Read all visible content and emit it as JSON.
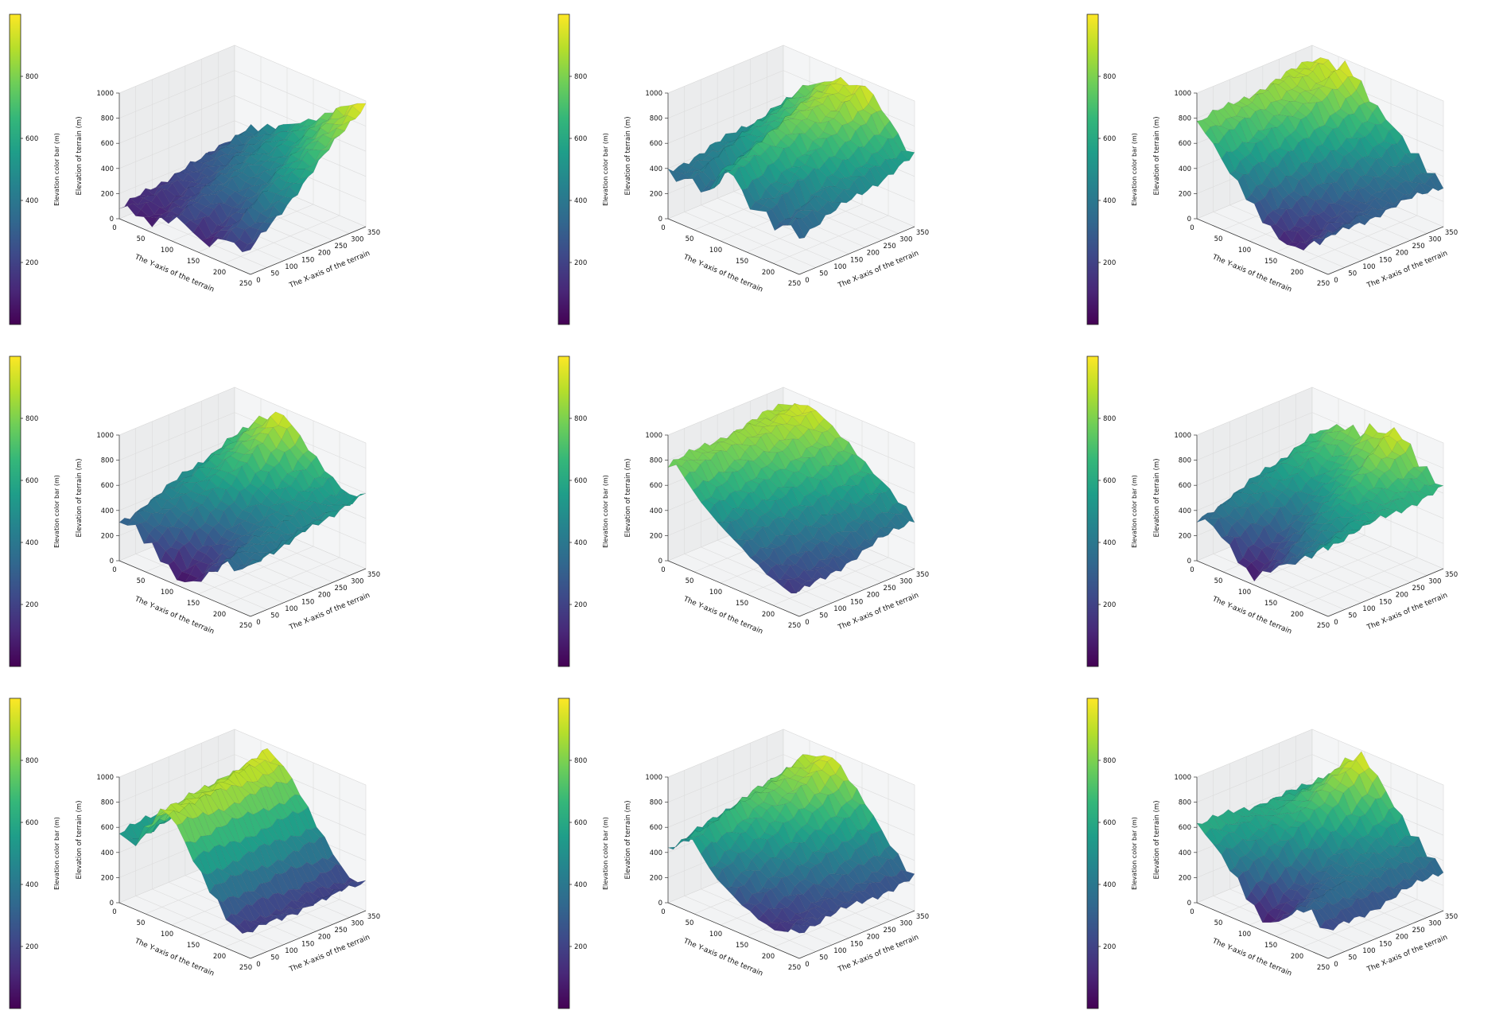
{
  "colormap": {
    "name": "viridis",
    "stops": [
      "#440154",
      "#482878",
      "#3e4989",
      "#31688e",
      "#26828e",
      "#1f9e89",
      "#35b779",
      "#6ece58",
      "#b5de2b",
      "#fde725"
    ]
  },
  "chart_data": [
    {
      "type": "surface3d",
      "panel_index": 0,
      "colorbar_label": "Elevation color bar (m)",
      "colorbar_ticks": [
        "200",
        "400",
        "600",
        "800"
      ],
      "colorbar_range": [
        0,
        1000
      ],
      "zlabel": "Elevation of terrain (m)",
      "zticks": [
        "0",
        "200",
        "400",
        "600",
        "800",
        "1000"
      ],
      "zlim": [
        0,
        1000
      ],
      "ylabel": "The Y-axis of the terrain",
      "yticks": [
        "0",
        "50",
        "100",
        "150",
        "200",
        "250"
      ],
      "ylim": [
        0,
        250
      ],
      "xlabel": "The X-axis of the terrain",
      "xticks": [
        "0",
        "50",
        "100",
        "150",
        "200",
        "250",
        "300",
        "350"
      ],
      "xlim": [
        0,
        350
      ],
      "surface_trend": "low at Y=0 rising to ~980 at far corner",
      "front_profile": [
        80,
        130,
        60,
        90,
        150,
        200,
        160,
        80,
        120,
        220,
        150,
        190
      ],
      "back_profile": [
        250,
        380,
        420,
        470,
        520,
        580,
        640,
        700,
        790,
        870,
        940,
        980
      ]
    },
    {
      "type": "surface3d",
      "panel_index": 1,
      "colorbar_label": "Elevation color bar (m)",
      "colorbar_ticks": [
        "200",
        "400",
        "600",
        "800"
      ],
      "colorbar_range": [
        0,
        1000
      ],
      "zlabel": "Elevation of terrain (m)",
      "zticks": [
        "0",
        "200",
        "400",
        "600",
        "800",
        "1000"
      ],
      "zlim": [
        0,
        1000
      ],
      "ylabel": "The Y-axis of the terrain",
      "yticks": [
        "0",
        "50",
        "100",
        "150",
        "200",
        "250"
      ],
      "ylim": [
        0,
        250
      ],
      "xlabel": "The X-axis of the terrain",
      "xticks": [
        "0",
        "50",
        "100",
        "150",
        "200",
        "250",
        "300",
        "350"
      ],
      "xlim": [
        0,
        350
      ],
      "surface_trend": "central ridge peaking near 950",
      "front_profile": [
        380,
        320,
        420,
        280,
        480,
        600,
        520,
        320,
        420,
        260,
        380,
        300
      ],
      "back_profile": [
        520,
        650,
        760,
        820,
        880,
        940,
        900,
        980,
        840,
        760,
        620,
        560
      ]
    },
    {
      "type": "surface3d",
      "panel_index": 2,
      "colorbar_label": "Elevation color bar (m)",
      "colorbar_ticks": [
        "200",
        "400",
        "600",
        "800"
      ],
      "colorbar_range": [
        0,
        1000
      ],
      "zlabel": "Elevation of terrain (m)",
      "zticks": [
        "0",
        "200",
        "400",
        "600",
        "800",
        "1000"
      ],
      "zlim": [
        0,
        1000
      ],
      "ylabel": "The Y-axis of the terrain",
      "yticks": [
        "0",
        "50",
        "100",
        "150",
        "200",
        "250"
      ],
      "ylim": [
        0,
        250
      ],
      "xlabel": "The X-axis of the terrain",
      "xticks": [
        "0",
        "50",
        "100",
        "150",
        "200",
        "250",
        "300",
        "350"
      ],
      "xlim": [
        0,
        350
      ],
      "surface_trend": "high at Y=0 (~900) falling to ~100",
      "front_profile": [
        760,
        700,
        560,
        460,
        360,
        260,
        180,
        120,
        80,
        140,
        220,
        300
      ],
      "back_profile": [
        880,
        950,
        900,
        980,
        860,
        760,
        680,
        620,
        520,
        460,
        380,
        330
      ]
    },
    {
      "type": "surface3d",
      "panel_index": 3,
      "colorbar_label": "Elevation color bar (m)",
      "colorbar_ticks": [
        "200",
        "400",
        "600",
        "800"
      ],
      "colorbar_range": [
        0,
        1000
      ],
      "zlabel": "Elevation of terrain (m)",
      "zticks": [
        "0",
        "200",
        "400",
        "600",
        "800",
        "1000"
      ],
      "zlim": [
        0,
        1000
      ],
      "ylabel": "The Y-axis of the terrain",
      "yticks": [
        "0",
        "50",
        "100",
        "150",
        "200",
        "250"
      ],
      "ylim": [
        0,
        250
      ],
      "xlabel": "The X-axis of the terrain",
      "xticks": [
        "0",
        "50",
        "100",
        "150",
        "200",
        "250",
        "300",
        "350"
      ],
      "xlim": [
        0,
        350
      ],
      "surface_trend": "peak ~960 with deep valley at front corner",
      "front_profile": [
        300,
        340,
        260,
        200,
        120,
        40,
        60,
        140,
        240,
        360,
        300,
        420
      ],
      "back_profile": [
        600,
        720,
        820,
        900,
        960,
        880,
        780,
        700,
        620,
        560,
        520,
        600
      ]
    },
    {
      "type": "surface3d",
      "panel_index": 4,
      "colorbar_label": "Elevation color bar (m)",
      "colorbar_ticks": [
        "200",
        "400",
        "600",
        "800"
      ],
      "colorbar_range": [
        0,
        1000
      ],
      "zlabel": "Elevation of terrain (m)",
      "zticks": [
        "0",
        "200",
        "400",
        "600",
        "800",
        "1000"
      ],
      "zlim": [
        0,
        1000
      ],
      "ylabel": "The Y-axis of the terrain",
      "yticks": [
        "0",
        "50",
        "100",
        "150",
        "200",
        "250"
      ],
      "ylim": [
        0,
        250
      ],
      "xlabel": "The X-axis of the terrain",
      "xticks": [
        "0",
        "50",
        "100",
        "150",
        "200",
        "250",
        "300",
        "350"
      ],
      "xlim": [
        0,
        350
      ],
      "surface_trend": "ridge ~950 near Y=0 descending to ~200",
      "front_profile": [
        760,
        780,
        640,
        560,
        480,
        420,
        360,
        300,
        240,
        200,
        160,
        180
      ],
      "back_profile": [
        860,
        900,
        940,
        920,
        860,
        800,
        740,
        660,
        600,
        540,
        460,
        400
      ]
    },
    {
      "type": "surface3d",
      "panel_index": 5,
      "colorbar_label": "Elevation color bar (m)",
      "colorbar_ticks": [
        "200",
        "400",
        "600",
        "800"
      ],
      "colorbar_range": [
        0,
        1000
      ],
      "zlabel": "Elevation of terrain (m)",
      "zticks": [
        "0",
        "200",
        "400",
        "600",
        "800",
        "1000"
      ],
      "zlim": [
        0,
        1000
      ],
      "ylabel": "The Y-axis of the terrain",
      "yticks": [
        "0",
        "50",
        "100",
        "150",
        "200",
        "250"
      ],
      "ylim": [
        0,
        250
      ],
      "xlabel": "The X-axis of the terrain",
      "xticks": [
        "0",
        "50",
        "100",
        "150",
        "200",
        "250",
        "300",
        "350"
      ],
      "xlim": [
        0,
        350
      ],
      "surface_trend": "basin at front, highs ~900 at back",
      "front_profile": [
        320,
        360,
        280,
        200,
        80,
        60,
        160,
        240,
        300,
        380,
        480,
        560
      ],
      "back_profile": [
        600,
        720,
        760,
        820,
        780,
        900,
        860,
        960,
        880,
        760,
        700,
        640
      ]
    },
    {
      "type": "surface3d",
      "panel_index": 6,
      "colorbar_label": "Elevation color bar (m)",
      "colorbar_ticks": [
        "200",
        "400",
        "600",
        "800"
      ],
      "colorbar_range": [
        0,
        1000
      ],
      "zlabel": "Elevation of terrain (m)",
      "zticks": [
        "0",
        "200",
        "400",
        "600",
        "800",
        "1000"
      ],
      "zlim": [
        0,
        1000
      ],
      "ylabel": "The Y-axis of the terrain",
      "yticks": [
        "0",
        "50",
        "100",
        "150",
        "200",
        "250"
      ],
      "ylim": [
        0,
        250
      ],
      "xlabel": "The X-axis of the terrain",
      "xticks": [
        "0",
        "50",
        "100",
        "150",
        "200",
        "250",
        "300",
        "350"
      ],
      "xlim": [
        0,
        350
      ],
      "surface_trend": "sharp peak ~960 near Y=70, falls to ~150",
      "front_profile": [
        560,
        480,
        640,
        820,
        900,
        780,
        620,
        480,
        360,
        240,
        160,
        220
      ],
      "back_profile": [
        600,
        700,
        860,
        960,
        880,
        780,
        640,
        500,
        380,
        260,
        180,
        240
      ]
    },
    {
      "type": "surface3d",
      "panel_index": 7,
      "colorbar_label": "Elevation color bar (m)",
      "colorbar_ticks": [
        "200",
        "400",
        "600",
        "800"
      ],
      "colorbar_range": [
        0,
        1000
      ],
      "zlabel": "Elevation of terrain (m)",
      "zticks": [
        "0",
        "200",
        "400",
        "600",
        "800",
        "1000"
      ],
      "zlim": [
        0,
        1000
      ],
      "ylabel": "The Y-axis of the terrain",
      "yticks": [
        "0",
        "50",
        "100",
        "150",
        "200",
        "250"
      ],
      "ylim": [
        0,
        250
      ],
      "xlabel": "The X-axis of the terrain",
      "xticks": [
        "0",
        "50",
        "100",
        "150",
        "200",
        "250",
        "300",
        "350"
      ],
      "xlim": [
        0,
        350
      ],
      "surface_trend": "peak ~960 near middle, descending to ~150",
      "front_profile": [
        420,
        520,
        600,
        460,
        360,
        300,
        240,
        200,
        160,
        140,
        180,
        220
      ],
      "back_profile": [
        620,
        760,
        880,
        900,
        960,
        880,
        780,
        680,
        560,
        440,
        340,
        260
      ]
    },
    {
      "type": "surface3d",
      "panel_index": 8,
      "colorbar_label": "Elevation color bar (m)",
      "colorbar_ticks": [
        "200",
        "400",
        "600",
        "800"
      ],
      "colorbar_range": [
        0,
        1000
      ],
      "zlabel": "Elevation of terrain (m)",
      "zticks": [
        "0",
        "200",
        "400",
        "600",
        "800",
        "1000"
      ],
      "zlim": [
        0,
        1000
      ],
      "ylabel": "The Y-axis of the terrain",
      "yticks": [
        "0",
        "50",
        "100",
        "150",
        "200",
        "250"
      ],
      "ylim": [
        0,
        250
      ],
      "xlabel": "The X-axis of the terrain",
      "xticks": [
        "0",
        "50",
        "100",
        "150",
        "200",
        "250",
        "300",
        "350"
      ],
      "xlim": [
        0,
        350
      ],
      "surface_trend": "peak ~980 with central valley ~60",
      "front_profile": [
        620,
        560,
        460,
        360,
        240,
        120,
        60,
        140,
        240,
        320,
        280,
        200
      ],
      "back_profile": [
        560,
        640,
        760,
        880,
        980,
        900,
        780,
        660,
        540,
        460,
        380,
        320
      ]
    }
  ]
}
